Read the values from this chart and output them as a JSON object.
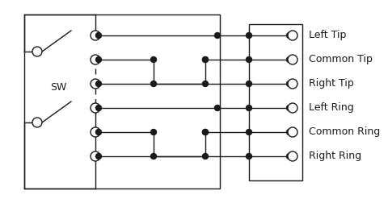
{
  "background": "#ffffff",
  "line_color": "#1a1a1a",
  "text_color": "#1a1a1a",
  "font_family": "Courier New",
  "font_size": 9,
  "labels": [
    "Left Tip",
    "Common Tip",
    "Right Tip",
    "Left Ring",
    "Common Ring",
    "Right Ring"
  ]
}
